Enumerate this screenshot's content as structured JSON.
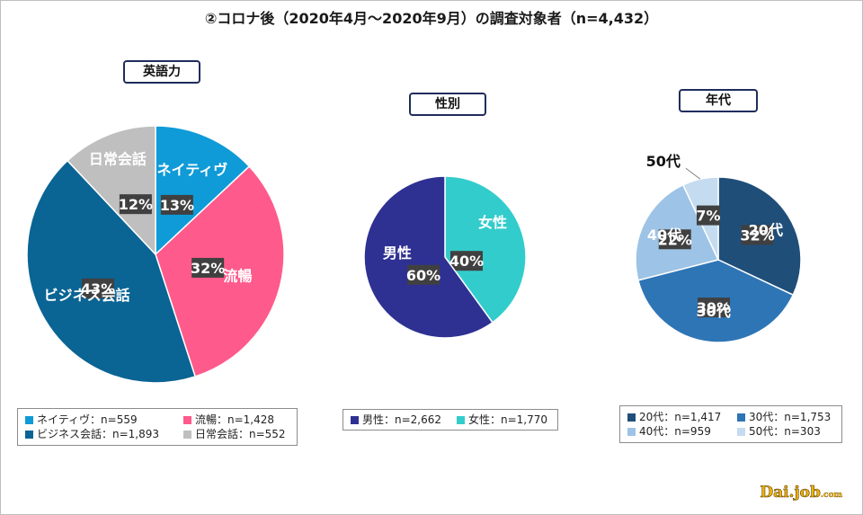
{
  "title": "②コロナ後（2020年4月～2020年9月）の調査対象者（n=4,432）",
  "logo": {
    "main": "Dai.job",
    "suffix": ".com"
  },
  "chart_data": [
    {
      "type": "pie",
      "title": "英語力",
      "slices": [
        {
          "label": "ネイティヴ",
          "value": 13,
          "percent_label": "13%",
          "legend": "ネイティヴ：n=559",
          "color": "#0f9bd7"
        },
        {
          "label": "流暢",
          "value": 32,
          "percent_label": "32%",
          "legend": "流暢：n=1,428",
          "color": "#ff5a8c"
        },
        {
          "label": "ビジネス会話",
          "value": 43,
          "percent_label": "43%",
          "legend": "ビジネス会話：n=1,893",
          "color": "#0a6494"
        },
        {
          "label": "日常会話",
          "value": 12,
          "percent_label": "12%",
          "legend": "日常会話：n=552",
          "color": "#bfbfbf"
        }
      ]
    },
    {
      "type": "pie",
      "title": "性別",
      "slices": [
        {
          "label": "女性",
          "value": 40,
          "percent_label": "40%",
          "legend": "女性：n=1,770",
          "color": "#33cccc"
        },
        {
          "label": "男性",
          "value": 60,
          "percent_label": "60%",
          "legend": "男性：n=2,662",
          "color": "#2e3192"
        }
      ]
    },
    {
      "type": "pie",
      "title": "年代",
      "slices": [
        {
          "label": "20代",
          "value": 32,
          "percent_label": "32%",
          "legend": "20代：n=1,417",
          "color": "#1f4e79"
        },
        {
          "label": "30代",
          "value": 39,
          "percent_label": "39%",
          "legend": "30代：n=1,753",
          "color": "#2e75b6"
        },
        {
          "label": "40代",
          "value": 22,
          "percent_label": "22%",
          "legend": "40代：n=959",
          "color": "#9dc3e6"
        },
        {
          "label": "50代",
          "value": 7,
          "percent_label": "7%",
          "legend": "50代：n=303",
          "color": "#c5dbf0"
        }
      ]
    }
  ]
}
